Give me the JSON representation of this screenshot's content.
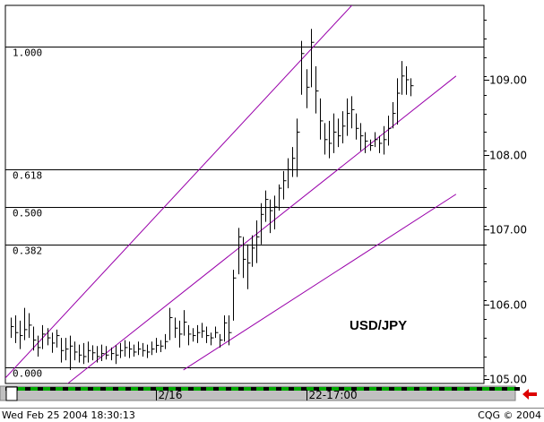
{
  "chart_data": {
    "type": "ohlc-bar",
    "symbol": "USD/JPY",
    "y_ticks": [
      "105.00",
      "106.00",
      "107.00",
      "108.00",
      "109.00"
    ],
    "y_tick_values": [
      105.0,
      106.0,
      107.0,
      108.0,
      109.0
    ],
    "ylim": [
      104.8,
      110.0
    ],
    "x_tick_labels": [
      {
        "label": "2/16",
        "bar_index": 32
      },
      {
        "label": "22-17:00",
        "bar_index": 65
      }
    ],
    "fibonacci_levels": [
      {
        "label": "1.000",
        "price": 109.44
      },
      {
        "label": "0.618",
        "price": 107.8
      },
      {
        "label": "0.500",
        "price": 107.3
      },
      {
        "label": "0.382",
        "price": 106.8
      },
      {
        "label": "0.000",
        "price": 105.15
      }
    ],
    "channel_lines": [
      {
        "from": {
          "bar": -2,
          "price": 104.96
        },
        "to": {
          "bar": 77,
          "price": 110.12
        }
      },
      {
        "from": {
          "bar": -2,
          "price": 104.24
        },
        "to": {
          "bar": 98,
          "price": 109.05
        }
      },
      {
        "from": {
          "bar": 38,
          "price": 105.12
        },
        "to": {
          "bar": 98,
          "price": 107.47
        }
      }
    ],
    "bars": [
      [
        105.82,
        105.55,
        105.7
      ],
      [
        105.85,
        105.48,
        105.62
      ],
      [
        105.78,
        105.4,
        105.58
      ],
      [
        105.95,
        105.52,
        105.66
      ],
      [
        105.88,
        105.55,
        105.72
      ],
      [
        105.7,
        105.38,
        105.52
      ],
      [
        105.58,
        105.3,
        105.42
      ],
      [
        105.72,
        105.4,
        105.6
      ],
      [
        105.68,
        105.45,
        105.55
      ],
      [
        105.62,
        105.35,
        105.48
      ],
      [
        105.66,
        105.42,
        105.58
      ],
      [
        105.55,
        105.22,
        105.38
      ],
      [
        105.55,
        105.25,
        105.4
      ],
      [
        105.58,
        105.12,
        105.44
      ],
      [
        105.5,
        105.25,
        105.36
      ],
      [
        105.46,
        105.22,
        105.32
      ],
      [
        105.48,
        105.2,
        105.3
      ],
      [
        105.5,
        105.22,
        105.38
      ],
      [
        105.45,
        105.25,
        105.35
      ],
      [
        105.44,
        105.22,
        105.3
      ],
      [
        105.46,
        105.24,
        105.34
      ],
      [
        105.44,
        105.26,
        105.32
      ],
      [
        105.42,
        105.25,
        105.34
      ],
      [
        105.45,
        105.2,
        105.32
      ],
      [
        105.48,
        105.28,
        105.38
      ],
      [
        105.52,
        105.3,
        105.42
      ],
      [
        105.5,
        105.28,
        105.4
      ],
      [
        105.46,
        105.3,
        105.36
      ],
      [
        105.5,
        105.32,
        105.4
      ],
      [
        105.48,
        105.3,
        105.38
      ],
      [
        105.46,
        105.28,
        105.36
      ],
      [
        105.5,
        105.32,
        105.4
      ],
      [
        105.55,
        105.35,
        105.45
      ],
      [
        105.52,
        105.36,
        105.44
      ],
      [
        105.6,
        105.4,
        105.5
      ],
      [
        105.95,
        105.52,
        105.82
      ],
      [
        105.82,
        105.55,
        105.68
      ],
      [
        105.78,
        105.42,
        105.6
      ],
      [
        105.92,
        105.58,
        105.76
      ],
      [
        105.72,
        105.45,
        105.6
      ],
      [
        105.68,
        105.5,
        105.58
      ],
      [
        105.72,
        105.48,
        105.62
      ],
      [
        105.75,
        105.55,
        105.64
      ],
      [
        105.7,
        105.48,
        105.58
      ],
      [
        105.62,
        105.45,
        105.55
      ],
      [
        105.7,
        105.55,
        105.62
      ],
      [
        105.6,
        105.42,
        105.52
      ],
      [
        105.85,
        105.5,
        105.75
      ],
      [
        105.85,
        105.45,
        105.62
      ],
      [
        106.46,
        105.78,
        106.35
      ],
      [
        107.02,
        106.4,
        106.9
      ],
      [
        106.9,
        106.35,
        106.6
      ],
      [
        106.8,
        106.2,
        106.55
      ],
      [
        106.92,
        106.5,
        106.75
      ],
      [
        107.12,
        106.55,
        106.9
      ],
      [
        107.35,
        106.8,
        107.2
      ],
      [
        107.52,
        107.1,
        107.4
      ],
      [
        107.4,
        106.95,
        107.25
      ],
      [
        107.45,
        107.0,
        107.3
      ],
      [
        107.6,
        107.25,
        107.55
      ],
      [
        107.78,
        107.4,
        107.65
      ],
      [
        107.95,
        107.55,
        107.8
      ],
      [
        108.1,
        107.7,
        107.95
      ],
      [
        108.48,
        107.7,
        108.3
      ],
      [
        109.52,
        108.8,
        109.35
      ],
      [
        109.14,
        108.62,
        108.9
      ],
      [
        109.68,
        108.9,
        109.5
      ],
      [
        109.18,
        108.55,
        108.85
      ],
      [
        108.75,
        108.2,
        108.45
      ],
      [
        108.42,
        108.0,
        108.2
      ],
      [
        108.45,
        107.95,
        108.15
      ],
      [
        108.55,
        108.02,
        108.3
      ],
      [
        108.48,
        108.1,
        108.25
      ],
      [
        108.58,
        108.15,
        108.38
      ],
      [
        108.75,
        108.25,
        108.55
      ],
      [
        108.78,
        108.35,
        108.6
      ],
      [
        108.55,
        108.2,
        108.35
      ],
      [
        108.42,
        108.05,
        108.25
      ],
      [
        108.3,
        108.02,
        108.18
      ],
      [
        108.2,
        108.05,
        108.12
      ],
      [
        108.3,
        108.1,
        108.2
      ],
      [
        108.25,
        108.02,
        108.15
      ],
      [
        108.38,
        108.0,
        108.2
      ],
      [
        108.52,
        108.12,
        108.35
      ],
      [
        108.7,
        108.35,
        108.55
      ],
      [
        109.02,
        108.4,
        108.82
      ],
      [
        109.25,
        108.8,
        109.05
      ],
      [
        109.18,
        108.8,
        109.0
      ],
      [
        109.02,
        108.78,
        108.92
      ]
    ]
  },
  "status_bar": {
    "timestamp": "Wed Feb 25 2004 18:30:13",
    "copyright": "CQG © 2004"
  },
  "colors": {
    "channel": "#9900aa",
    "bars": "#000000",
    "scroll_dash": "#00aa00",
    "arrow": "#dd0000"
  }
}
